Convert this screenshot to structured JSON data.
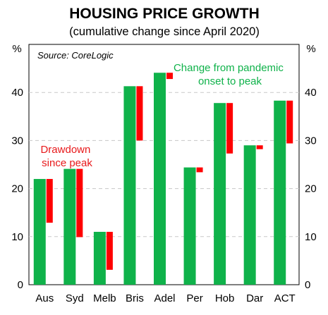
{
  "chart_data": {
    "type": "bar",
    "title": "HOUSING PRICE GROWTH",
    "subtitle": "(cumulative change since April 2020)",
    "source": "Source: CoreLogic",
    "unit": "%",
    "categories": [
      "Aus",
      "Syd",
      "Melb",
      "Bris",
      "Adel",
      "Per",
      "Hob",
      "Dar",
      "ACT"
    ],
    "series": [
      {
        "values": [
          22,
          24.1,
          11,
          41.3,
          44.1,
          24.4,
          37.8,
          29,
          38.3
        ],
        "color": "#0fb24a"
      },
      {
        "values": [
          [
            12.9,
            22
          ],
          [
            9.9,
            24.1
          ],
          [
            3.1,
            11
          ],
          [
            30,
            41.3
          ],
          [
            42.8,
            44.1
          ],
          [
            23.4,
            24.4
          ],
          [
            27.3,
            37.8
          ],
          [
            28.2,
            29
          ],
          [
            29.4,
            38.3
          ]
        ],
        "color": "#ff0000"
      }
    ],
    "annotations": [
      {
        "text": [
          "Change from pandemic",
          "onset to peak"
        ],
        "color": "#0fb24a"
      },
      {
        "text": [
          "Drawdown",
          "since peak"
        ],
        "color": "#e8191b"
      }
    ],
    "ylim": [
      0,
      50
    ],
    "yticks": [
      0,
      10,
      20,
      30,
      40
    ],
    "grid": true
  }
}
